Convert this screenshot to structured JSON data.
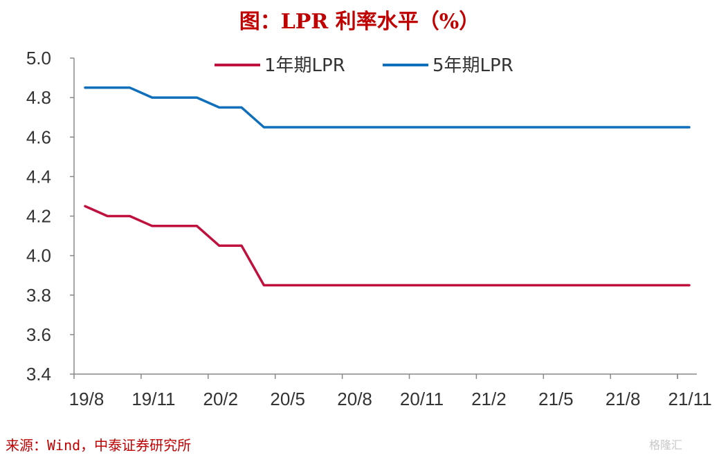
{
  "title": "图：LPR 利率水平（%）",
  "source": "来源：Wind，中泰证券研究所",
  "watermark": "格隆汇",
  "chart_data": {
    "type": "line",
    "title": "图：LPR 利率水平（%）",
    "xlabel": "",
    "ylabel": "",
    "ylim": [
      3.4,
      5.0
    ],
    "yticks": [
      "3.4",
      "3.6",
      "3.8",
      "4.0",
      "4.2",
      "4.4",
      "4.6",
      "4.8",
      "5.0"
    ],
    "xticks": [
      "19/8",
      "19/11",
      "20/2",
      "20/5",
      "20/8",
      "20/11",
      "21/2",
      "21/5",
      "21/8",
      "21/11"
    ],
    "x": [
      "19/8",
      "19/9",
      "19/10",
      "19/11",
      "19/12",
      "20/1",
      "20/2",
      "20/3",
      "20/4",
      "20/5",
      "20/6",
      "20/7",
      "20/8",
      "20/9",
      "20/10",
      "20/11",
      "20/12",
      "21/1",
      "21/2",
      "21/3",
      "21/4",
      "21/5",
      "21/6",
      "21/7",
      "21/8",
      "21/9",
      "21/10",
      "21/11"
    ],
    "grid": false,
    "legend": "top",
    "series": [
      {
        "name": "1年期LPR",
        "color": "#c0103e",
        "values": [
          4.25,
          4.2,
          4.2,
          4.15,
          4.15,
          4.15,
          4.05,
          4.05,
          3.85,
          3.85,
          3.85,
          3.85,
          3.85,
          3.85,
          3.85,
          3.85,
          3.85,
          3.85,
          3.85,
          3.85,
          3.85,
          3.85,
          3.85,
          3.85,
          3.85,
          3.85,
          3.85,
          3.85
        ]
      },
      {
        "name": "5年期LPR",
        "color": "#0f6fba",
        "values": [
          4.85,
          4.85,
          4.85,
          4.8,
          4.8,
          4.8,
          4.75,
          4.75,
          4.65,
          4.65,
          4.65,
          4.65,
          4.65,
          4.65,
          4.65,
          4.65,
          4.65,
          4.65,
          4.65,
          4.65,
          4.65,
          4.65,
          4.65,
          4.65,
          4.65,
          4.65,
          4.65,
          4.65
        ]
      }
    ]
  }
}
